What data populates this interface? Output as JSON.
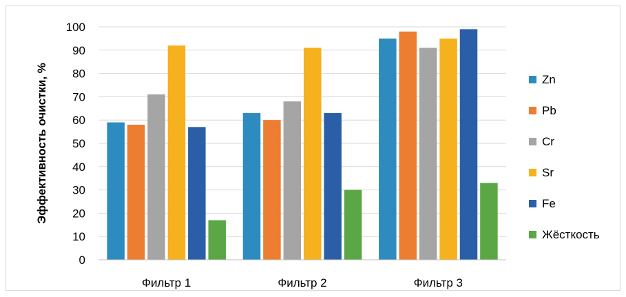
{
  "chart_data": {
    "type": "bar",
    "title": "",
    "xlabel": "",
    "ylabel": "Эффективность очистки, %",
    "ylim": [
      0,
      100
    ],
    "yticks": [
      0,
      10,
      20,
      30,
      40,
      50,
      60,
      70,
      80,
      90,
      100
    ],
    "grid": true,
    "legend_position": "right",
    "categories": [
      "Фильтр 1",
      "Фильтр 2",
      "Фильтр 3"
    ],
    "series": [
      {
        "name": "Zn",
        "color": "#2e8bc0",
        "values": [
          59,
          63,
          95
        ]
      },
      {
        "name": "Pb",
        "color": "#ed7d31",
        "values": [
          58,
          60,
          98
        ]
      },
      {
        "name": "Cr",
        "color": "#a5a5a5",
        "values": [
          71,
          68,
          91
        ]
      },
      {
        "name": "Sr",
        "color": "#f5b21e",
        "values": [
          92,
          91,
          95
        ]
      },
      {
        "name": "Fe",
        "color": "#2a5fa8",
        "values": [
          57,
          63,
          99
        ]
      },
      {
        "name": "Жёсткость",
        "color": "#5ca745",
        "values": [
          17,
          30,
          33
        ]
      }
    ]
  }
}
